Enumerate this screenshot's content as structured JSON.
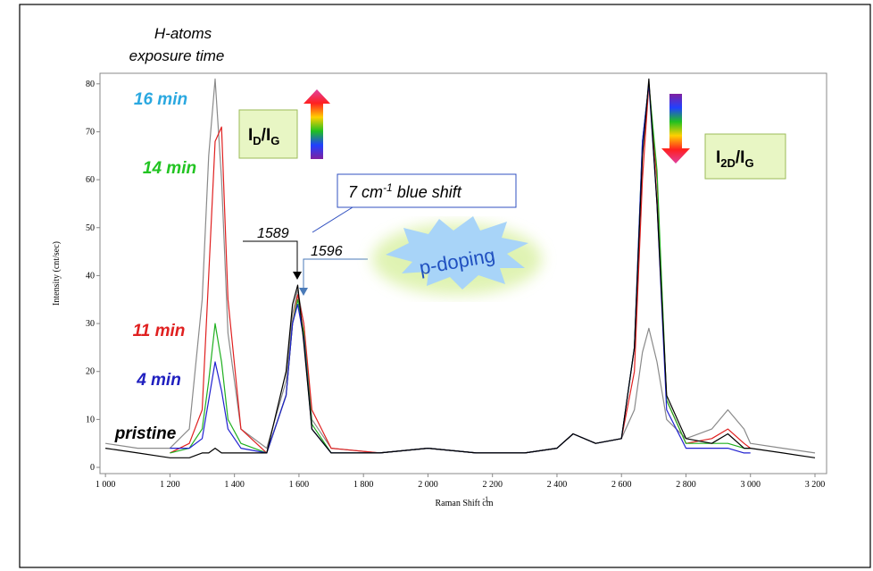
{
  "chart_data": {
    "type": "line",
    "x_label": "Raman Shift cm",
    "x_label_sup": "-1",
    "y_label": "Intensity (cnt/sec)",
    "xlim": [
      983,
      3236
    ],
    "ylim": [
      -1.3,
      82.2
    ],
    "xticks": [
      {
        "value": 1000,
        "label": "1 000"
      },
      {
        "value": 1200,
        "label": "1 200"
      },
      {
        "value": 1400,
        "label": "1 400"
      },
      {
        "value": 1600,
        "label": "1 600"
      },
      {
        "value": 1800,
        "label": "1 800"
      },
      {
        "value": 2000,
        "label": "2 000"
      },
      {
        "value": 2200,
        "label": "2 200"
      },
      {
        "value": 2400,
        "label": "2 400"
      },
      {
        "value": 2600,
        "label": "2 600"
      },
      {
        "value": 2800,
        "label": "2 800"
      },
      {
        "value": 3000,
        "label": "3 000"
      },
      {
        "value": 3200,
        "label": "3 200"
      }
    ],
    "yticks": [
      0,
      10,
      20,
      30,
      40,
      50,
      60,
      70,
      80
    ],
    "legend_title": [
      "H-atoms",
      "exposure time"
    ],
    "x": [
      1000,
      1100,
      1200,
      1260,
      1300,
      1320,
      1340,
      1360,
      1380,
      1420,
      1500,
      1560,
      1580,
      1596,
      1615,
      1640,
      1700,
      1850,
      2000,
      2150,
      2300,
      2400,
      2450,
      2520,
      2600,
      2640,
      2665,
      2685,
      2710,
      2740,
      2800,
      2880,
      2930,
      2980,
      3000,
      3100,
      3200
    ],
    "series": [
      {
        "name": "16 min",
        "color": "#8a8a8a",
        "label_color": "#2aa8e0",
        "values": [
          5,
          4,
          4,
          8,
          35,
          65,
          81,
          60,
          28,
          8,
          4,
          18,
          32,
          37,
          30,
          10,
          4,
          3,
          4,
          3,
          3,
          4,
          7,
          5,
          6,
          12,
          24,
          29,
          22,
          10,
          6,
          8,
          12,
          8,
          5,
          4,
          3
        ]
      },
      {
        "name": "14 min",
        "color": "#e02020",
        "label_color": "#22c422",
        "values": [
          null,
          null,
          3,
          5,
          12,
          40,
          68,
          71,
          35,
          8,
          3,
          15,
          30,
          36,
          30,
          12,
          4,
          3,
          4,
          3,
          3,
          4,
          7,
          5,
          6,
          20,
          60,
          80,
          60,
          14,
          5,
          6,
          8,
          5,
          4,
          null,
          null
        ]
      },
      {
        "name": "11 min",
        "color": "#20b020",
        "label_color": "#e02020",
        "values": [
          null,
          null,
          3,
          4,
          8,
          18,
          30,
          22,
          10,
          5,
          3,
          15,
          30,
          35,
          28,
          9,
          3,
          3,
          4,
          3,
          3,
          4,
          7,
          5,
          6,
          25,
          68,
          80,
          62,
          14,
          5,
          5,
          5,
          4,
          4,
          null,
          null
        ]
      },
      {
        "name": "4 min",
        "color": "#2020d0",
        "label_color": "#1f1fbf",
        "values": [
          null,
          null,
          4,
          4,
          6,
          14,
          22,
          16,
          8,
          4,
          3,
          15,
          30,
          34,
          27,
          8,
          3,
          3,
          4,
          3,
          3,
          4,
          7,
          5,
          6,
          25,
          68,
          80,
          55,
          12,
          4,
          4,
          4,
          3,
          3,
          null,
          null
        ]
      },
      {
        "name": "pristine",
        "color": "#000000",
        "label_color": "#000000",
        "values": [
          4,
          3,
          2,
          2,
          3,
          3,
          4,
          3,
          3,
          3,
          3,
          20,
          34,
          38,
          26,
          8,
          3,
          3,
          4,
          3,
          3,
          4,
          7,
          5,
          6,
          25,
          65,
          81,
          55,
          15,
          6,
          5,
          7,
          4,
          4,
          3,
          2
        ]
      }
    ],
    "ratio_d": {
      "i1": "I",
      "s1": "D",
      "i2": "/I",
      "s2": "G"
    },
    "ratio_2d": {
      "i1": "I",
      "s1": "2D",
      "i2": "/I",
      "s2": "G"
    },
    "shift_note": {
      "pre": "7 cm",
      "sup": "-1",
      "post": " blue shift"
    },
    "peak_1": "1589",
    "peak_2": "1596",
    "doping": "p-doping"
  }
}
